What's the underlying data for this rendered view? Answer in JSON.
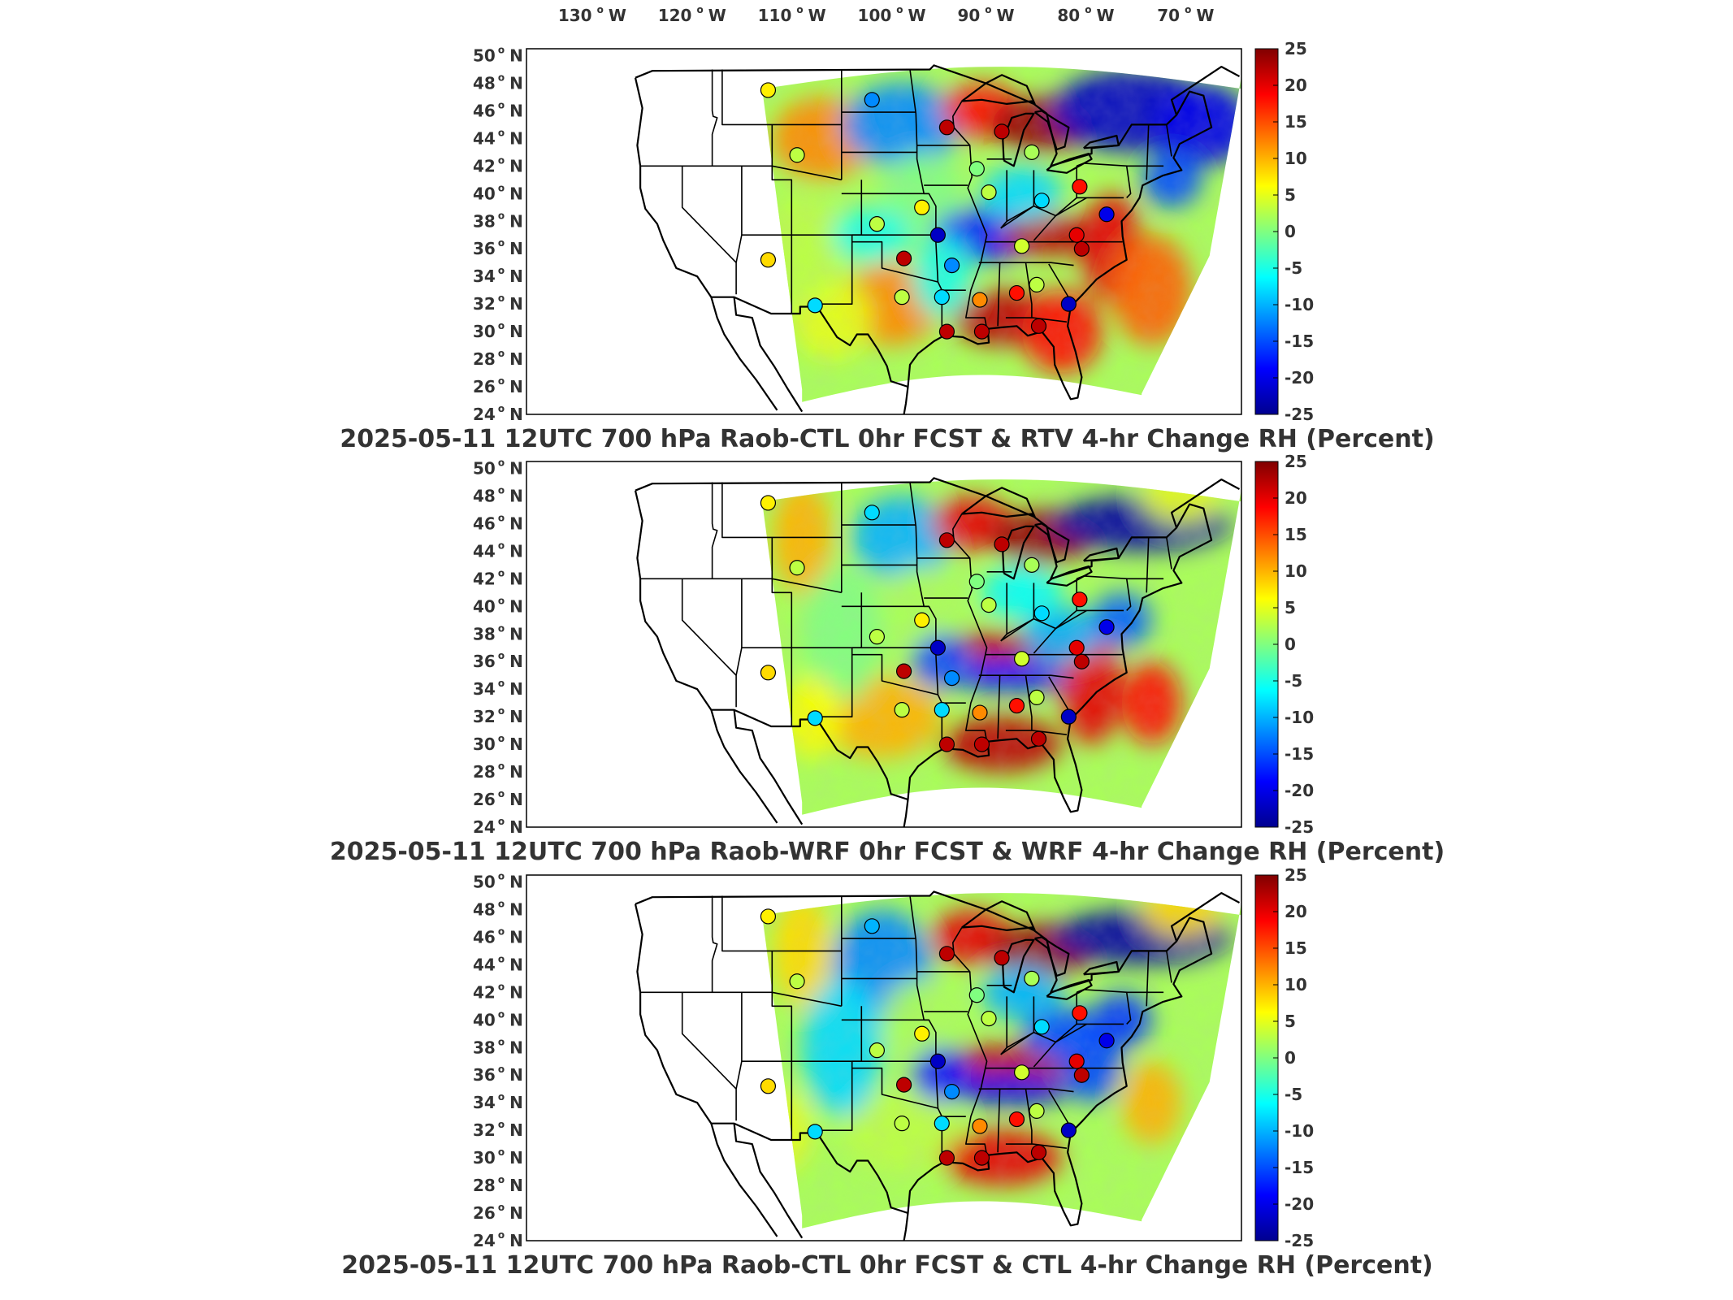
{
  "colorscale": {
    "min": -25,
    "max": 25,
    "ticks": [
      "25",
      "20",
      "15",
      "10",
      "5",
      "0",
      "-5",
      "-10",
      "-15",
      "-20",
      "-25"
    ],
    "colors": [
      "#00008f",
      "#0000ff",
      "#0080ff",
      "#00ffff",
      "#80ff80",
      "#ffff00",
      "#ff8000",
      "#ff0000",
      "#800000"
    ]
  },
  "lon_labels": [
    "130",
    "120",
    "110",
    "100",
    "90",
    "80",
    "70"
  ],
  "lon_suffix": "W",
  "lat_labels": [
    "50",
    "48",
    "46",
    "44",
    "42",
    "40",
    "38",
    "36",
    "34",
    "32",
    "30",
    "28",
    "26",
    "24"
  ],
  "lat_suffix": "N",
  "degree_symbol": "o",
  "panels": [
    {
      "title": "2025-05-11 12UTC 700 hPa Raob-CTL 0hr FCST & RTV 4-hr Change RH (Percent)"
    },
    {
      "title": "2025-05-11 12UTC 700 hPa Raob-WRF 0hr FCST & WRF 4-hr Change RH (Percent)"
    },
    {
      "title": "2025-05-11 12UTC 700 hPa Raob-CTL 0hr FCST & CTL 4-hr Change RH (Percent)"
    }
  ],
  "raob_stations": [
    {
      "lon": -111.4,
      "lat": 47.5,
      "values": [
        7,
        7,
        7
      ]
    },
    {
      "lon": -101.0,
      "lat": 46.8,
      "values": [
        -12,
        -8,
        -10
      ]
    },
    {
      "lon": -93.5,
      "lat": 44.8,
      "values": [
        22,
        22,
        22
      ]
    },
    {
      "lon": -88.0,
      "lat": 44.5,
      "values": [
        22,
        22,
        22
      ]
    },
    {
      "lon": -85.0,
      "lat": 43.0,
      "values": [
        2,
        2,
        2
      ]
    },
    {
      "lon": -108.5,
      "lat": 42.8,
      "values": [
        3,
        3,
        3
      ]
    },
    {
      "lon": -90.5,
      "lat": 41.8,
      "values": [
        0,
        0,
        0
      ]
    },
    {
      "lon": -89.3,
      "lat": 40.1,
      "values": [
        3,
        3,
        3
      ]
    },
    {
      "lon": -84.0,
      "lat": 39.5,
      "values": [
        -8,
        -8,
        -8
      ]
    },
    {
      "lon": -80.2,
      "lat": 40.5,
      "values": [
        18,
        18,
        18
      ]
    },
    {
      "lon": -100.5,
      "lat": 37.8,
      "values": [
        3,
        3,
        3
      ]
    },
    {
      "lon": -96.0,
      "lat": 39.0,
      "values": [
        7,
        7,
        7
      ]
    },
    {
      "lon": -94.4,
      "lat": 37.0,
      "values": [
        -22,
        -22,
        -22
      ]
    },
    {
      "lon": -86.0,
      "lat": 36.2,
      "values": [
        4,
        4,
        4
      ]
    },
    {
      "lon": -80.5,
      "lat": 37.0,
      "values": [
        20,
        20,
        20
      ]
    },
    {
      "lon": -80.0,
      "lat": 36.0,
      "values": [
        22,
        22,
        22
      ]
    },
    {
      "lon": -111.4,
      "lat": 35.2,
      "values": [
        8,
        8,
        8
      ]
    },
    {
      "lon": -97.8,
      "lat": 35.3,
      "values": [
        22,
        22,
        22
      ]
    },
    {
      "lon": -93.0,
      "lat": 34.8,
      "values": [
        -12,
        -12,
        -12
      ]
    },
    {
      "lon": -106.7,
      "lat": 31.9,
      "values": [
        -8,
        -8,
        -8
      ]
    },
    {
      "lon": -98.0,
      "lat": 32.5,
      "values": [
        3,
        3,
        3
      ]
    },
    {
      "lon": -94.0,
      "lat": 32.5,
      "values": [
        -8,
        -8,
        -8
      ]
    },
    {
      "lon": -90.2,
      "lat": 32.3,
      "values": [
        12,
        12,
        12
      ]
    },
    {
      "lon": -86.5,
      "lat": 32.8,
      "values": [
        18,
        18,
        18
      ]
    },
    {
      "lon": -84.5,
      "lat": 33.4,
      "values": [
        3,
        3,
        3
      ]
    },
    {
      "lon": -81.3,
      "lat": 32.0,
      "values": [
        -22,
        -22,
        -22
      ]
    },
    {
      "lon": -93.5,
      "lat": 30.0,
      "values": [
        22,
        22,
        22
      ]
    },
    {
      "lon": -90.0,
      "lat": 30.0,
      "values": [
        22,
        22,
        22
      ]
    },
    {
      "lon": -84.3,
      "lat": 30.4,
      "values": [
        22,
        22,
        22
      ]
    },
    {
      "lon": -77.5,
      "lat": 38.5,
      "values": [
        -20,
        -20,
        -20
      ]
    }
  ]
}
